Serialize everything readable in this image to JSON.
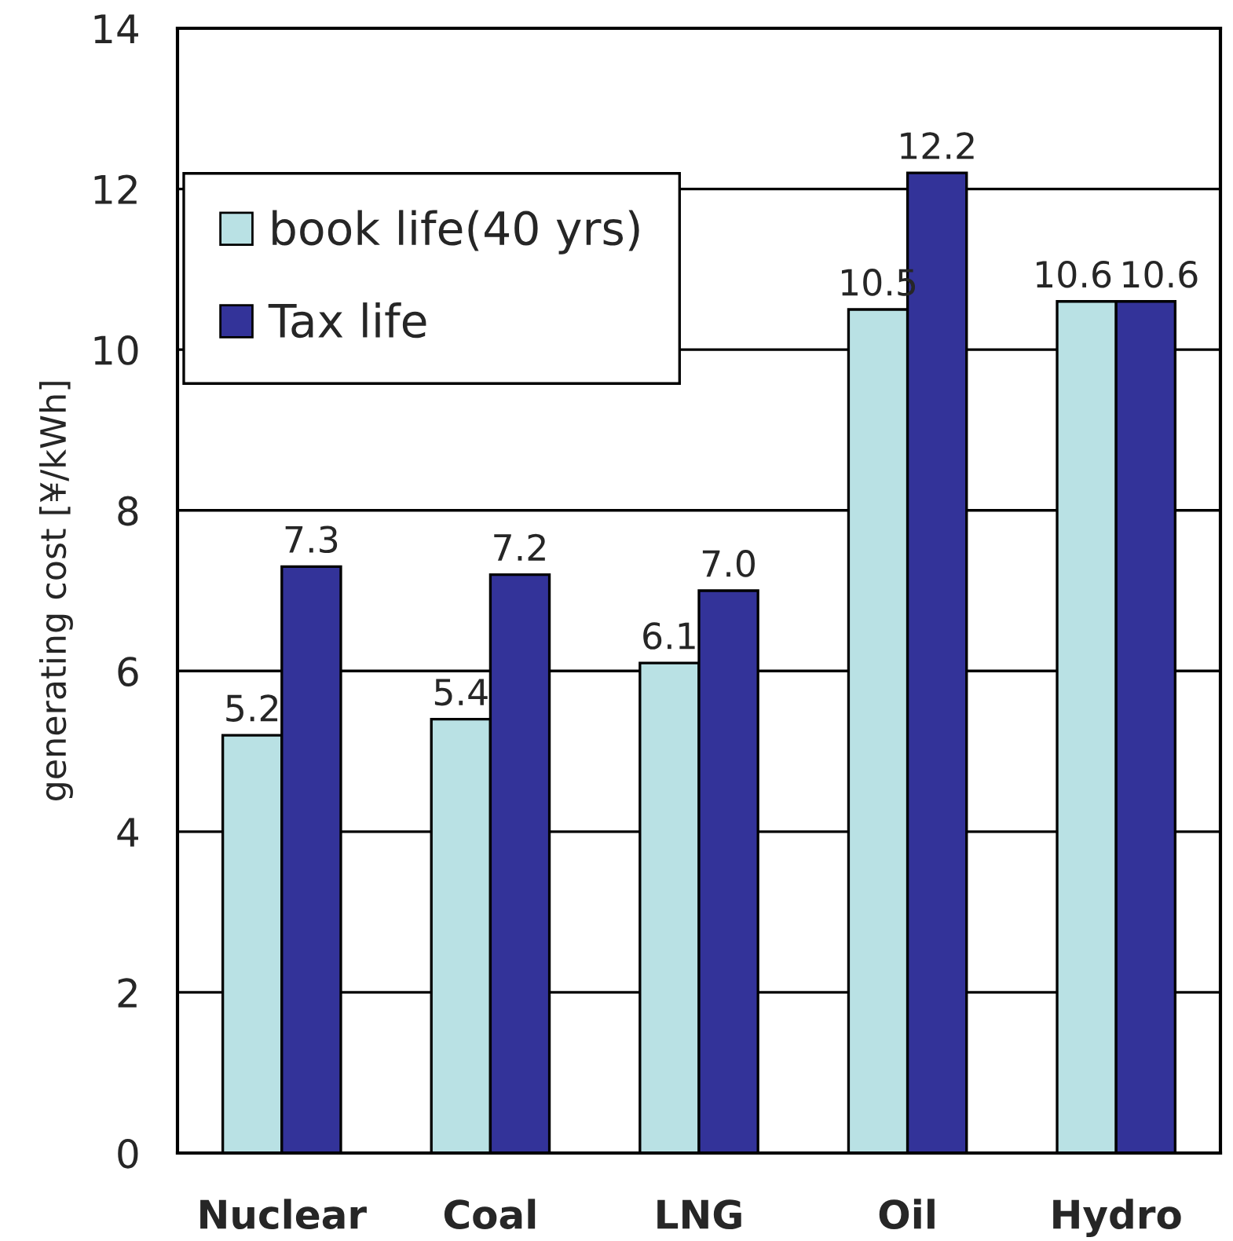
{
  "chart_data": {
    "type": "bar",
    "ylabel": "generating cost [¥/kWh]",
    "categories": [
      "Nuclear",
      "Coal",
      "LNG",
      "Oil",
      "Hydro"
    ],
    "series": [
      {
        "name": "book life(40 yrs)",
        "color": "#b9e1e4",
        "values": [
          5.2,
          5.4,
          6.1,
          10.5,
          10.6
        ],
        "value_labels": [
          "5.2",
          "5.4",
          "6.1",
          "10.5",
          "10.6"
        ]
      },
      {
        "name": "Tax life",
        "color": "#333399",
        "values": [
          7.3,
          7.2,
          7.0,
          12.2,
          10.6
        ],
        "value_labels": [
          "7.3",
          "7.2",
          "7.0",
          "12.2",
          "10.6"
        ]
      }
    ],
    "ylim": [
      0,
      14
    ],
    "yticks": [
      0,
      2,
      4,
      6,
      8,
      10,
      12,
      14
    ],
    "grid": "y",
    "legend": "top left"
  }
}
